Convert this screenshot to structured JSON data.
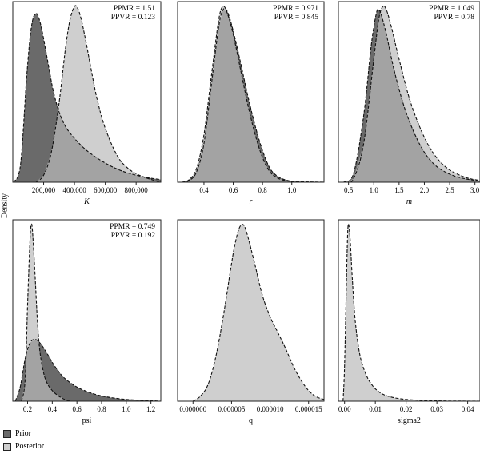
{
  "figure": {
    "ylabel": "Density",
    "colors": {
      "prior": "#6a6a6a",
      "posterior": "#cfcfcf",
      "overlap": "#a3a3a3"
    },
    "legend": [
      {
        "label": "Prior",
        "color": "#6a6a6a"
      },
      {
        "label": "Posterior",
        "color": "#cfcfcf"
      }
    ]
  },
  "chart_data": [
    {
      "type": "area",
      "panel": "K",
      "xlabel": "K",
      "italic": true,
      "xlim": [
        0,
        960000
      ],
      "ticks": [
        200000,
        400000,
        600000,
        800000
      ],
      "tick_labels": [
        "200,000",
        "400,000",
        "600,000",
        "800,000"
      ],
      "stats": [
        "PPMR = 1.51",
        "PPVR = 0.123"
      ],
      "series": [
        {
          "name": "Prior",
          "x": [
            5000,
            50000,
            90000,
            120000,
            150000,
            180000,
            220000,
            260000,
            300000,
            340000,
            380000,
            420000,
            480000,
            560000,
            640000,
            720000,
            800000,
            880000,
            960000
          ],
          "y": [
            0.0,
            0.1,
            0.6,
            0.88,
            0.96,
            0.9,
            0.72,
            0.53,
            0.4,
            0.32,
            0.27,
            0.23,
            0.18,
            0.13,
            0.09,
            0.06,
            0.04,
            0.025,
            0.015
          ]
        },
        {
          "name": "Posterior",
          "x": [
            150000,
            200000,
            250000,
            300000,
            340000,
            370000,
            400000,
            420000,
            440000,
            470000,
            500000,
            540000,
            580000,
            620000,
            660000,
            700000,
            760000,
            820000,
            880000,
            960000
          ],
          "y": [
            0.0,
            0.04,
            0.17,
            0.45,
            0.75,
            0.92,
            1.0,
            0.99,
            0.94,
            0.82,
            0.68,
            0.5,
            0.36,
            0.26,
            0.18,
            0.12,
            0.07,
            0.04,
            0.02,
            0.0
          ]
        }
      ]
    },
    {
      "type": "area",
      "panel": "r",
      "xlabel": "r",
      "italic": true,
      "xlim": [
        0.22,
        1.22
      ],
      "ticks": [
        0.4,
        0.6,
        0.8,
        1.0
      ],
      "tick_labels": [
        "0.4",
        "0.6",
        "0.8",
        "1.0"
      ],
      "stats": [
        "PPMR = 0.971",
        "PPVR = 0.845"
      ],
      "series": [
        {
          "name": "Prior",
          "x": [
            0.25,
            0.3,
            0.35,
            0.4,
            0.45,
            0.5,
            0.53,
            0.56,
            0.6,
            0.65,
            0.7,
            0.75,
            0.8,
            0.85,
            0.9,
            0.95,
            1.0,
            1.1,
            1.22
          ],
          "y": [
            0.0,
            0.01,
            0.06,
            0.22,
            0.55,
            0.88,
            0.98,
            0.97,
            0.86,
            0.68,
            0.49,
            0.32,
            0.18,
            0.08,
            0.035,
            0.015,
            0.006,
            0.002,
            0.0
          ]
        },
        {
          "name": "Posterior",
          "x": [
            0.25,
            0.3,
            0.35,
            0.4,
            0.45,
            0.5,
            0.53,
            0.56,
            0.6,
            0.65,
            0.7,
            0.75,
            0.8,
            0.85,
            0.9,
            0.95,
            1.0,
            1.1,
            1.22
          ],
          "y": [
            0.0,
            0.015,
            0.08,
            0.27,
            0.6,
            0.92,
            1.0,
            0.96,
            0.84,
            0.64,
            0.44,
            0.27,
            0.14,
            0.06,
            0.025,
            0.01,
            0.004,
            0.001,
            0.0
          ]
        }
      ]
    },
    {
      "type": "area",
      "panel": "m",
      "xlabel": "m",
      "italic": true,
      "xlim": [
        0.3,
        3.1
      ],
      "ticks": [
        0.5,
        1.0,
        1.5,
        2.0,
        2.5,
        3.0
      ],
      "tick_labels": [
        "0.5",
        "1.0",
        "1.5",
        "2.0",
        "2.5",
        "3.0"
      ],
      "stats": [
        "PPMR = 1.049",
        "PPVR = 0.78"
      ],
      "series": [
        {
          "name": "Prior",
          "x": [
            0.4,
            0.6,
            0.8,
            0.95,
            1.05,
            1.1,
            1.15,
            1.25,
            1.4,
            1.6,
            1.8,
            2.0,
            2.2,
            2.4,
            2.6,
            2.8,
            3.0,
            3.1
          ],
          "y": [
            0.0,
            0.05,
            0.38,
            0.78,
            0.96,
            0.98,
            0.95,
            0.84,
            0.64,
            0.43,
            0.28,
            0.17,
            0.1,
            0.06,
            0.035,
            0.02,
            0.01,
            0.005
          ]
        },
        {
          "name": "Posterior",
          "x": [
            0.45,
            0.6,
            0.8,
            1.0,
            1.1,
            1.18,
            1.25,
            1.35,
            1.5,
            1.7,
            1.9,
            2.1,
            2.3,
            2.5,
            2.7,
            2.9,
            3.1
          ],
          "y": [
            0.0,
            0.02,
            0.22,
            0.7,
            0.93,
            1.0,
            0.98,
            0.88,
            0.7,
            0.48,
            0.32,
            0.2,
            0.12,
            0.07,
            0.04,
            0.02,
            0.01
          ]
        }
      ]
    },
    {
      "type": "area",
      "panel": "psi",
      "xlabel": "psi",
      "italic": false,
      "xlim": [
        0.08,
        1.28
      ],
      "ticks": [
        0.2,
        0.4,
        0.6,
        0.8,
        1.0,
        1.2
      ],
      "tick_labels": [
        "0.2",
        "0.4",
        "0.6",
        "0.8",
        "1.0",
        "1.2"
      ],
      "stats": [
        "PPMR = 0.749",
        "PPVR = 0.192"
      ],
      "series": [
        {
          "name": "Prior",
          "x": [
            0.1,
            0.14,
            0.18,
            0.22,
            0.26,
            0.3,
            0.35,
            0.4,
            0.45,
            0.5,
            0.6,
            0.7,
            0.8,
            0.9,
            1.0,
            1.1,
            1.2,
            1.28
          ],
          "y": [
            0.0,
            0.08,
            0.24,
            0.33,
            0.35,
            0.33,
            0.28,
            0.22,
            0.17,
            0.13,
            0.08,
            0.05,
            0.03,
            0.018,
            0.01,
            0.006,
            0.003,
            0.0
          ]
        },
        {
          "name": "Posterior",
          "x": [
            0.15,
            0.18,
            0.2,
            0.22,
            0.23,
            0.24,
            0.26,
            0.28,
            0.3,
            0.33,
            0.36,
            0.4,
            0.45,
            0.5,
            0.55
          ],
          "y": [
            0.0,
            0.12,
            0.55,
            0.92,
            1.0,
            0.96,
            0.72,
            0.45,
            0.28,
            0.16,
            0.1,
            0.06,
            0.03,
            0.01,
            0.0
          ]
        }
      ]
    },
    {
      "type": "area",
      "panel": "q",
      "xlabel": "q",
      "italic": false,
      "xlim": [
        -2e-06,
        1.7e-05
      ],
      "ticks": [
        0.0,
        5e-06,
        1e-05,
        1.5e-05
      ],
      "tick_labels": [
        "0.000000",
        "0.000005",
        "0.000010",
        "0.000015"
      ],
      "stats": [],
      "series": [
        {
          "name": "Posterior",
          "x": [
            0.0,
            1e-06,
            2e-06,
            3e-06,
            4e-06,
            5e-06,
            5.5e-06,
            6e-06,
            6.5e-06,
            7e-06,
            8e-06,
            9e-06,
            1e-05,
            1.1e-05,
            1.2e-05,
            1.3e-05,
            1.4e-05,
            1.5e-05,
            1.6e-05,
            1.7e-05
          ],
          "y": [
            0.0,
            0.03,
            0.1,
            0.26,
            0.5,
            0.78,
            0.9,
            0.98,
            1.0,
            0.95,
            0.78,
            0.6,
            0.48,
            0.39,
            0.3,
            0.2,
            0.12,
            0.06,
            0.025,
            0.01
          ]
        }
      ]
    },
    {
      "type": "area",
      "panel": "sigma2",
      "xlabel": "sigma2",
      "italic": false,
      "xlim": [
        -0.002,
        0.044
      ],
      "ticks": [
        0.0,
        0.01,
        0.02,
        0.03,
        0.04
      ],
      "tick_labels": [
        "0.00",
        "0.01",
        "0.02",
        "0.03",
        "0.04"
      ],
      "stats": [],
      "series": [
        {
          "name": "Posterior",
          "x": [
            -0.0005,
            0.0,
            0.0008,
            0.0012,
            0.0018,
            0.0025,
            0.0035,
            0.005,
            0.007,
            0.009,
            0.011,
            0.013,
            0.016,
            0.02,
            0.025,
            0.03,
            0.035,
            0.04,
            0.044
          ],
          "y": [
            0.0,
            0.2,
            0.82,
            1.0,
            0.92,
            0.7,
            0.45,
            0.26,
            0.15,
            0.09,
            0.055,
            0.035,
            0.02,
            0.01,
            0.005,
            0.002,
            0.001,
            0.0005,
            0.0
          ]
        }
      ]
    }
  ]
}
